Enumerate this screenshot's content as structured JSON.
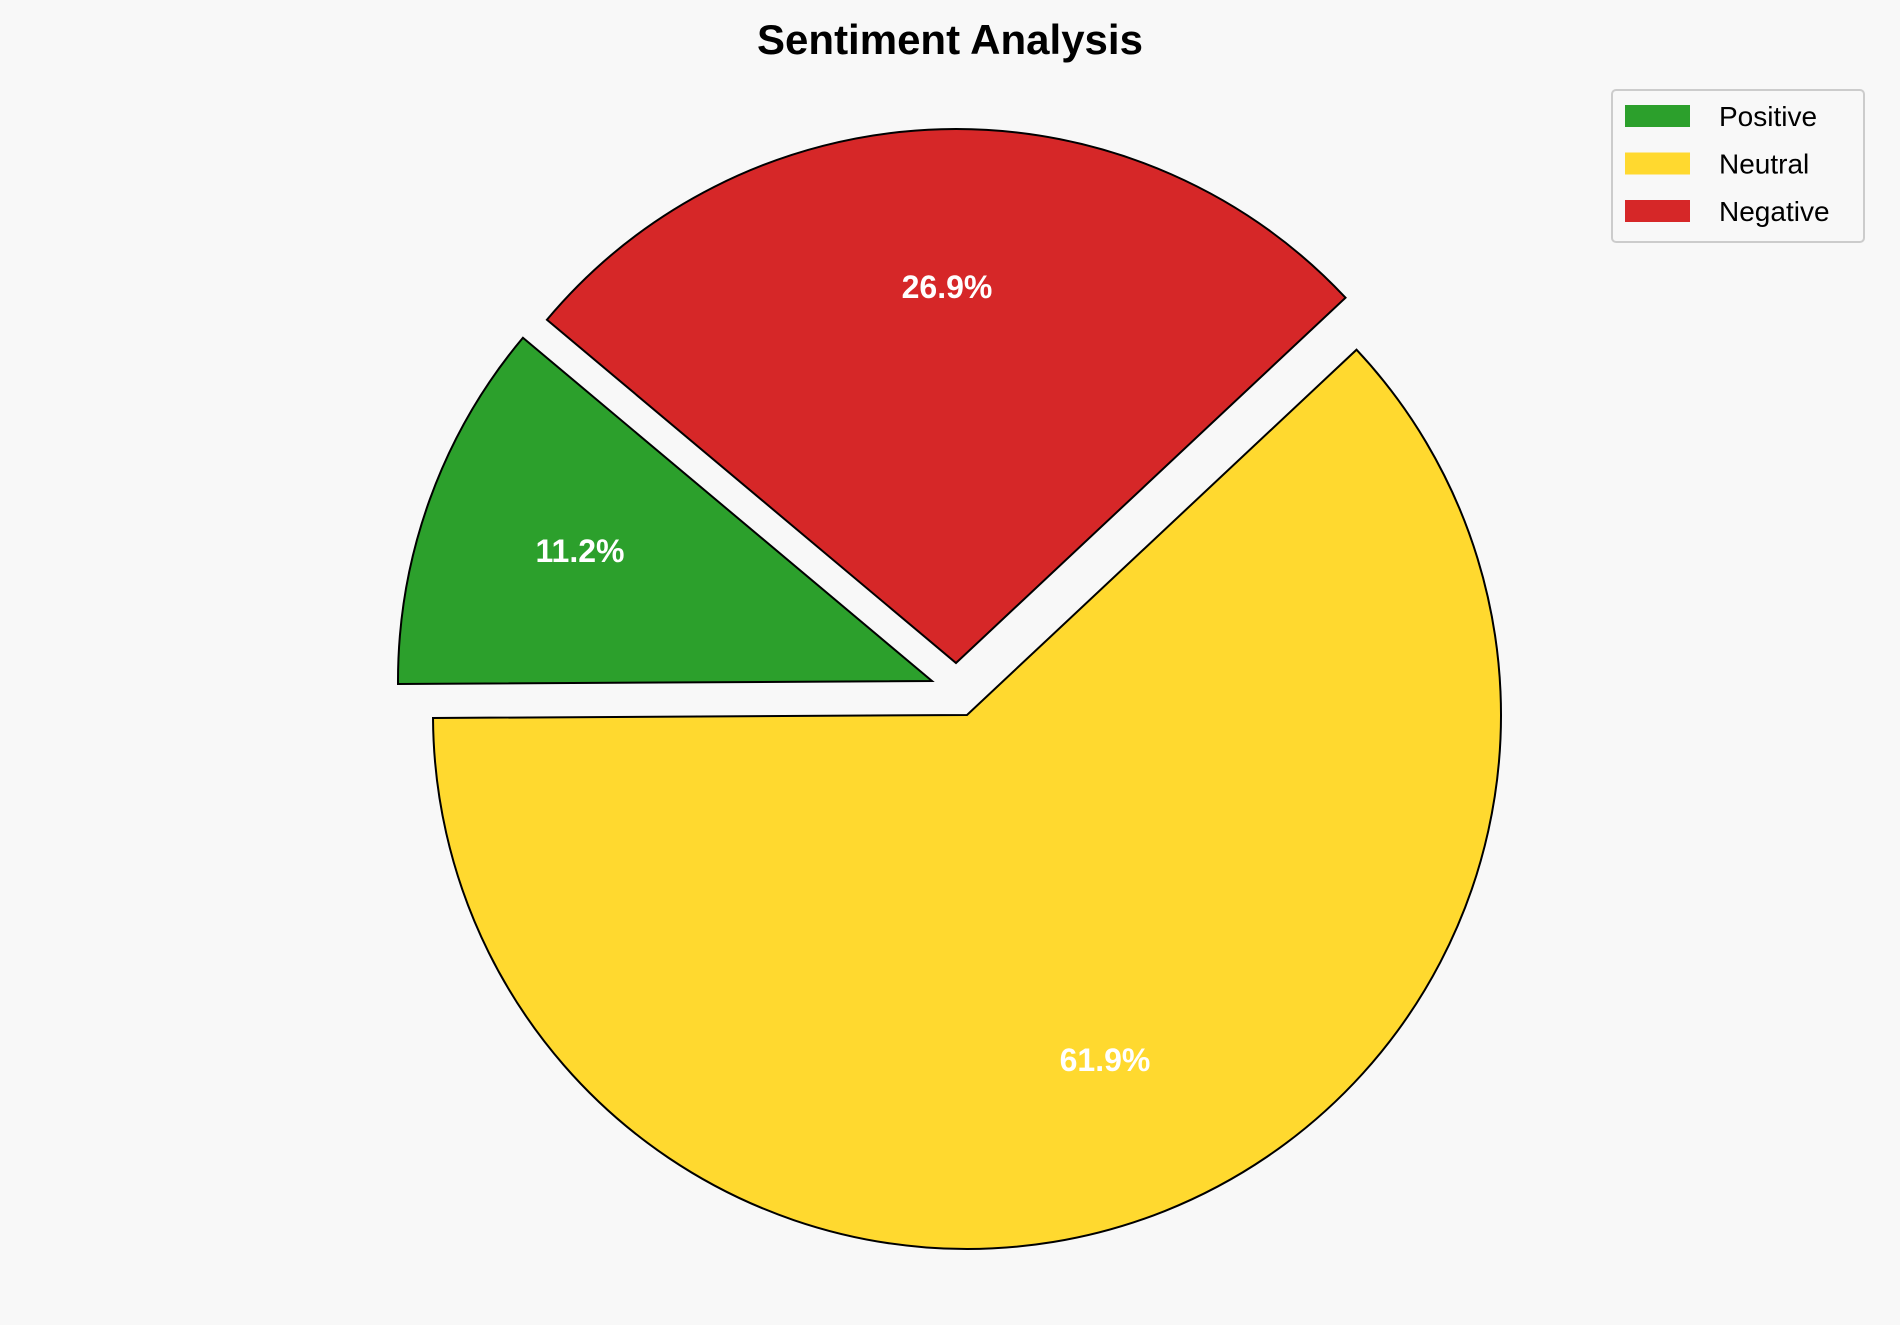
{
  "chart_data": {
    "type": "pie",
    "title": "Sentiment Analysis",
    "categories": [
      "Positive",
      "Neutral",
      "Negative"
    ],
    "values": [
      11.2,
      61.9,
      26.9
    ],
    "labels": [
      "11.2%",
      "61.9%",
      "26.9%"
    ],
    "colors": [
      "#2ca02c",
      "#ffd92f",
      "#d62728"
    ],
    "edge_color": "#000000",
    "start_angle_deg": 140,
    "direction": "counterclockwise",
    "exploded": [
      "Positive",
      "Negative"
    ],
    "legend": {
      "placement": "top-right",
      "entries": [
        "Positive",
        "Neutral",
        "Negative"
      ]
    }
  },
  "background_color": "#f8f8f8"
}
